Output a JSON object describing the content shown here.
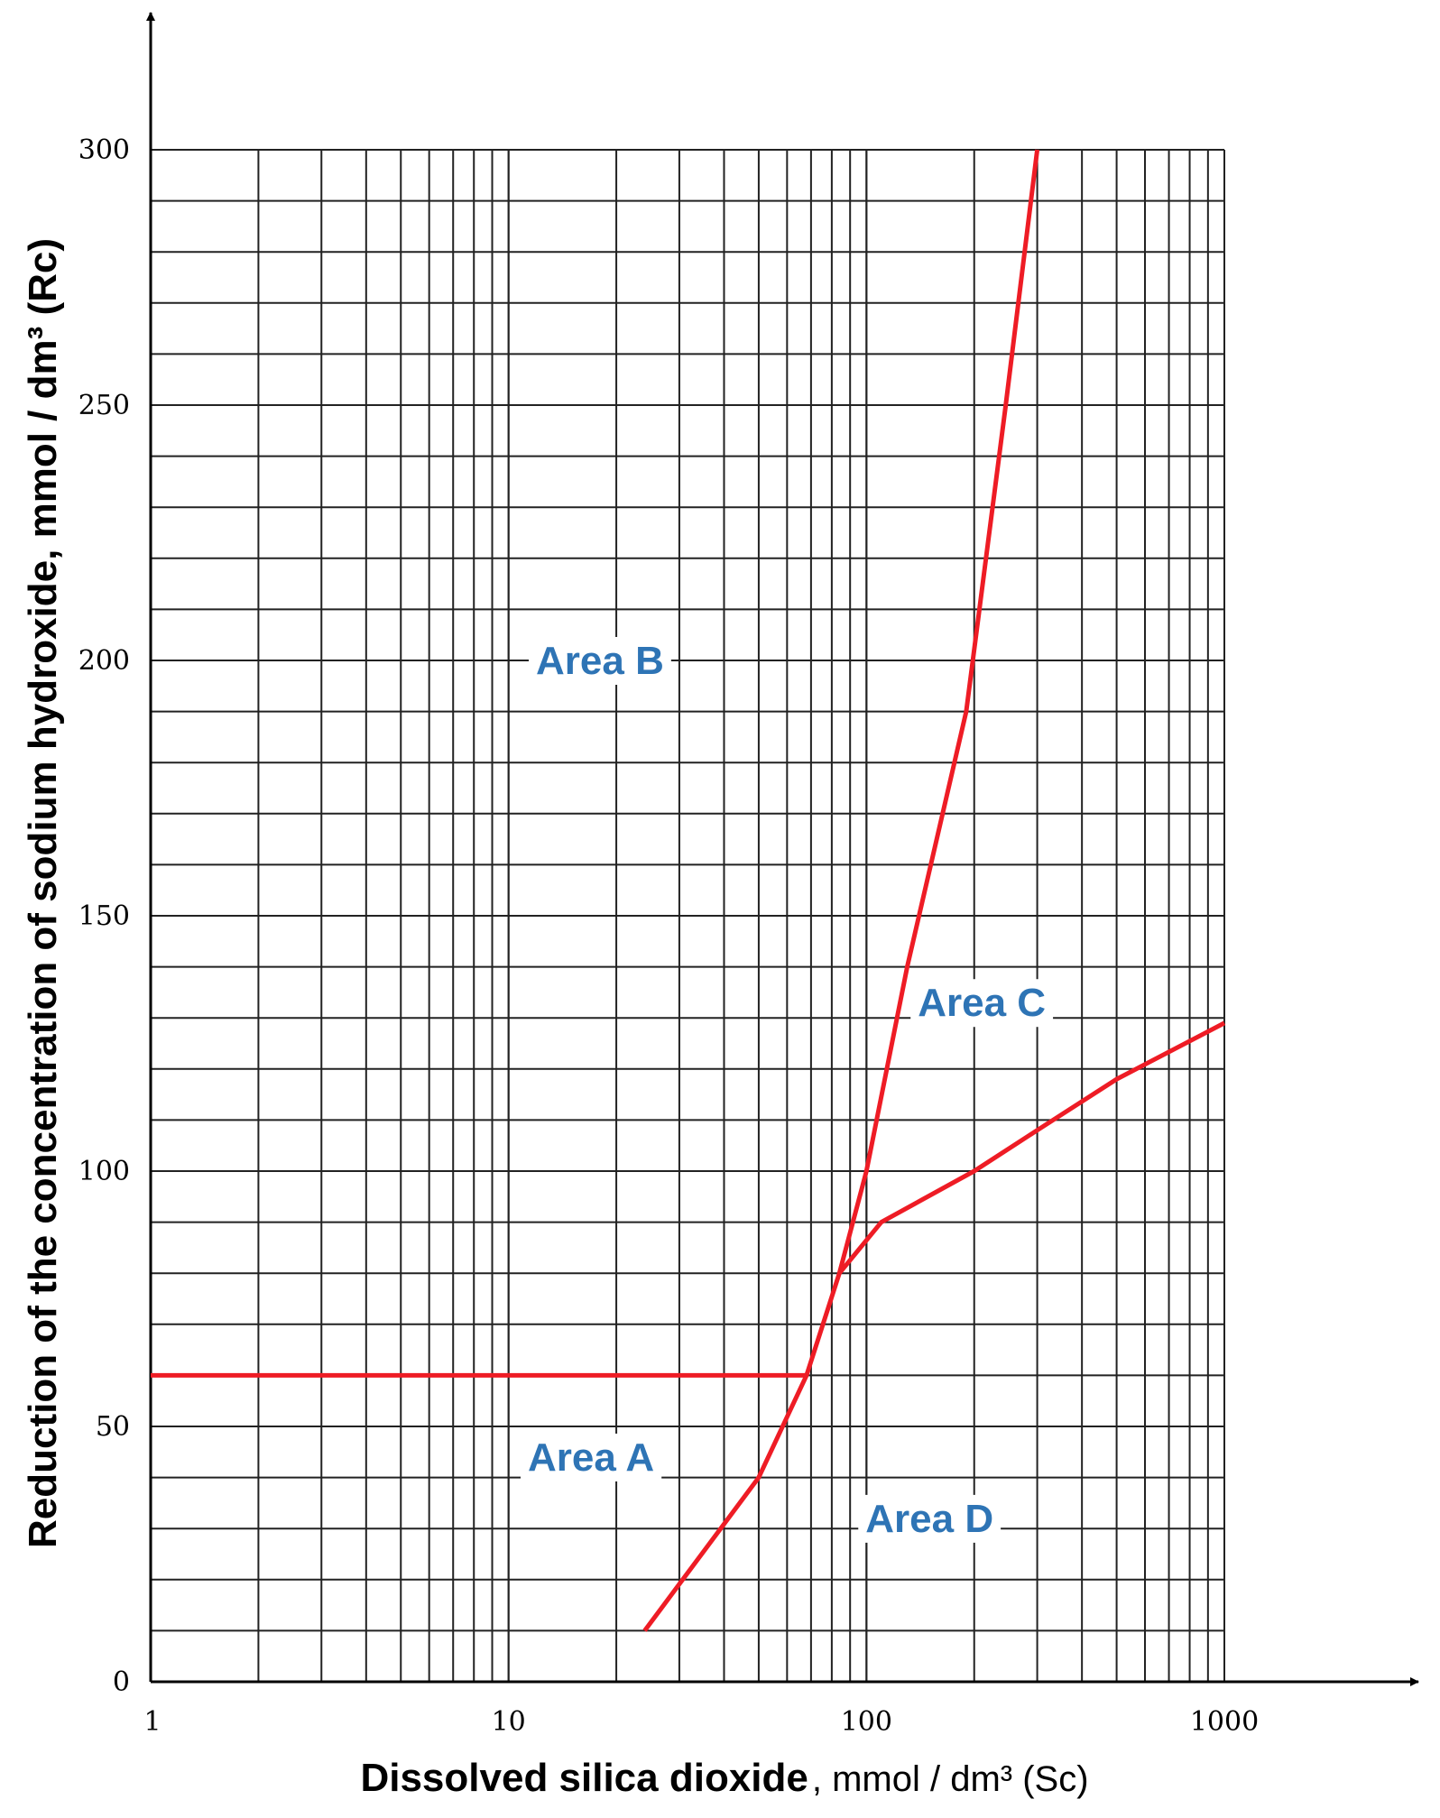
{
  "chart_data": {
    "type": "line",
    "xscale": "log",
    "xlim": [
      1,
      1000
    ],
    "ylim": [
      0,
      300
    ],
    "grid": true,
    "xlabel": "Dissolved silica dioxide",
    "xlabel_unit": ", mmol / dm³ (Sc)",
    "ylabel": "Reduction of the concentration of sodium hydroxide, mmol / dm³ (Rc)",
    "x_ticks": [
      {
        "value": 1,
        "label": "1"
      },
      {
        "value": 10,
        "label": "10"
      },
      {
        "value": 100,
        "label": "100"
      },
      {
        "value": 1000,
        "label": "1000"
      }
    ],
    "y_ticks": [
      {
        "value": 0,
        "label": "0"
      },
      {
        "value": 50,
        "label": "50"
      },
      {
        "value": 100,
        "label": "100"
      },
      {
        "value": 150,
        "label": "150"
      },
      {
        "value": 200,
        "label": "200"
      },
      {
        "value": 250,
        "label": "250"
      },
      {
        "value": 300,
        "label": "300"
      }
    ],
    "line_color": "#ee1c25",
    "label_color": "#2e74b5",
    "series": [
      {
        "points": [
          [
            1,
            60
          ],
          [
            68,
            60
          ]
        ]
      },
      {
        "points": [
          [
            24,
            10
          ],
          [
            50,
            40
          ],
          [
            68,
            60
          ],
          [
            84,
            80
          ],
          [
            100,
            100
          ],
          [
            130,
            140
          ],
          [
            190,
            190
          ],
          [
            245,
            250
          ],
          [
            300,
            300
          ]
        ]
      },
      {
        "points": [
          [
            84,
            80
          ],
          [
            110,
            90
          ],
          [
            200,
            100
          ],
          [
            300,
            108
          ],
          [
            500,
            118
          ],
          [
            1000,
            129
          ]
        ]
      }
    ],
    "annotations": [
      {
        "text": "Area B",
        "x": 18,
        "y": 200
      },
      {
        "text": "Area C",
        "x": 210,
        "y": 133
      },
      {
        "text": "Area A",
        "x": 17,
        "y": 44
      },
      {
        "text": "Area D",
        "x": 150,
        "y": 32
      }
    ]
  }
}
